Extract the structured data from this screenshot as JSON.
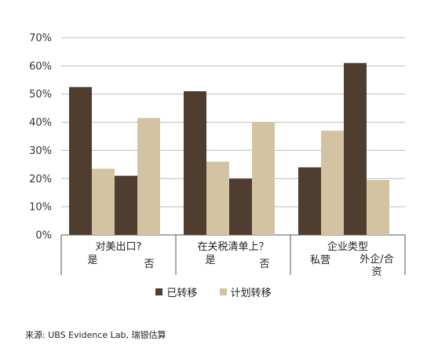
{
  "chart_data": {
    "type": "bar",
    "y_ticks": [
      "0%",
      "10%",
      "20%",
      "30%",
      "40%",
      "50%",
      "60%",
      "70%"
    ],
    "ylim": [
      0,
      70
    ],
    "groups": [
      {
        "label": "对美出口?",
        "categories": [
          "是",
          "否"
        ]
      },
      {
        "label": "在关税清单上？",
        "categories": [
          "是",
          "否"
        ]
      },
      {
        "label": "企业类型",
        "categories": [
          "私营",
          "外企/合资"
        ]
      }
    ],
    "series": [
      {
        "name": "已转移",
        "color": "#4f3e30",
        "values": [
          52.5,
          21,
          51,
          20,
          24,
          61
        ]
      },
      {
        "name": "计划转移",
        "color": "#d4c3a3",
        "values": [
          23.5,
          41.5,
          26,
          40,
          37,
          19.5
        ]
      }
    ],
    "grid": true,
    "legend_position": "bottom"
  },
  "source": "来源: UBS Evidence Lab, 瑞银估算"
}
